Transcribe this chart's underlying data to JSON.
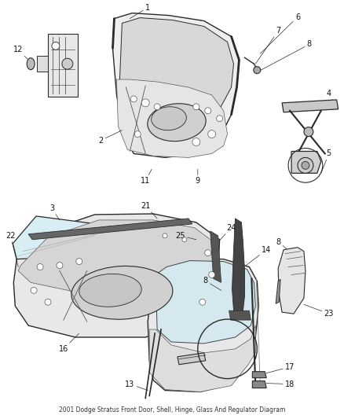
{
  "title": "2001 Dodge Stratus Front Door, Shell, Hinge, Glass And Regulator Diagram",
  "background_color": "#ffffff",
  "fig_width": 4.38,
  "fig_height": 5.33,
  "dpi": 100,
  "lc": "#2a2a2a",
  "lc2": "#555555",
  "fc_light": "#f0f0f0",
  "fc_mid": "#d8d8d8",
  "fc_dark": "#aaaaaa",
  "fc_darkest": "#666666",
  "label_fs": 7,
  "anno_lw": 0.5
}
